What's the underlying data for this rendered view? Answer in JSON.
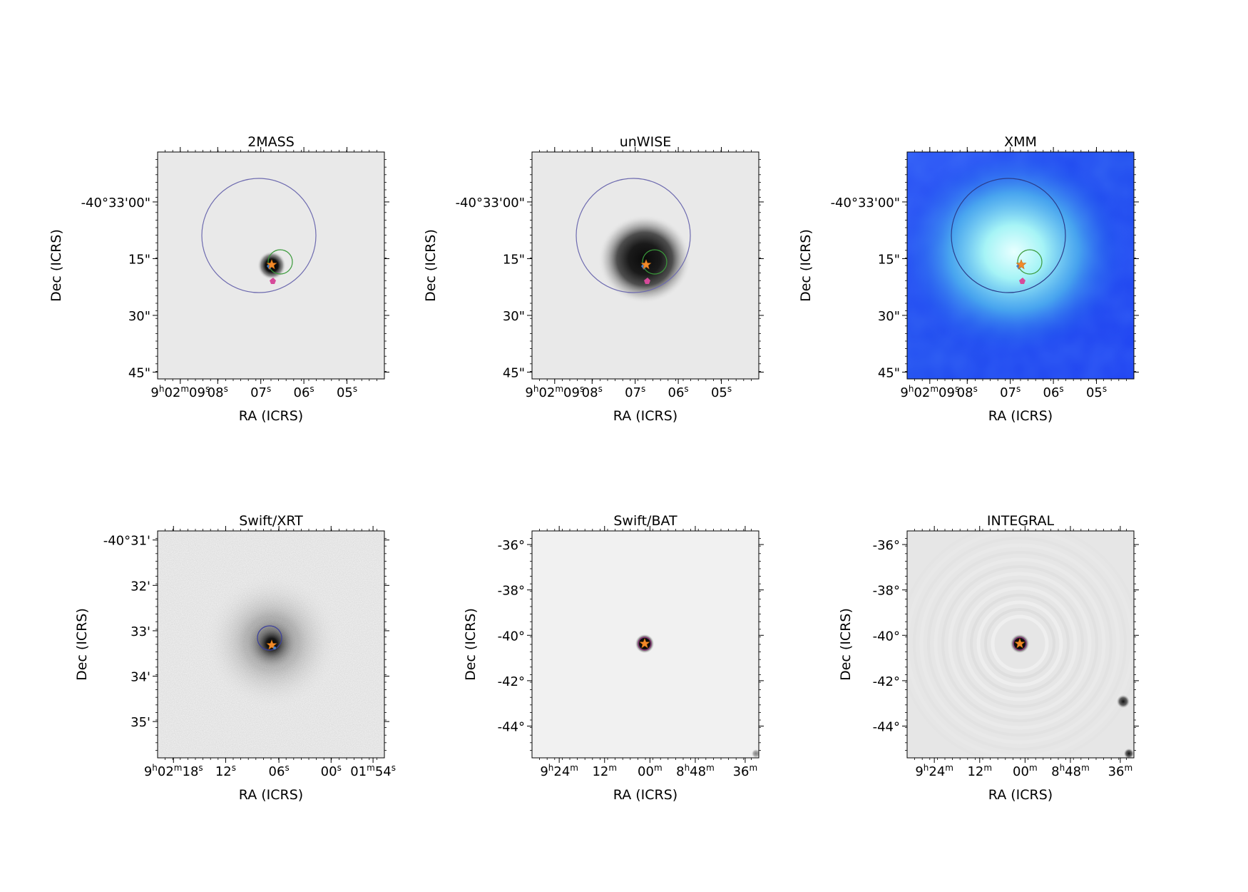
{
  "panels": [
    {
      "title": "2MASS",
      "xlabel": "RA (ICRS)",
      "ylabel": "Dec (ICRS)",
      "style": "2mass",
      "yticks": [
        {
          "label": "-40°33'00\"",
          "frac": 0.22
        },
        {
          "label": "15\"",
          "frac": 0.47
        },
        {
          "label": "30\"",
          "frac": 0.72
        },
        {
          "label": "45\"",
          "frac": 0.97
        }
      ],
      "xticks": [
        {
          "label": "9h02m09s",
          "frac": 0.1
        },
        {
          "label": "08s",
          "frac": 0.265
        },
        {
          "label": "07s",
          "frac": 0.455
        },
        {
          "label": "06s",
          "frac": 0.645
        },
        {
          "label": "05s",
          "frac": 0.835
        }
      ]
    },
    {
      "title": "unWISE",
      "xlabel": "RA (ICRS)",
      "ylabel": "Dec (ICRS)",
      "style": "unwise",
      "yticks": [
        {
          "label": "-40°33'00\"",
          "frac": 0.22
        },
        {
          "label": "15\"",
          "frac": 0.47
        },
        {
          "label": "30\"",
          "frac": 0.72
        },
        {
          "label": "45\"",
          "frac": 0.97
        }
      ],
      "xticks": [
        {
          "label": "9h02m09s",
          "frac": 0.1
        },
        {
          "label": "08s",
          "frac": 0.265
        },
        {
          "label": "07s",
          "frac": 0.455
        },
        {
          "label": "06s",
          "frac": 0.645
        },
        {
          "label": "05s",
          "frac": 0.835
        }
      ]
    },
    {
      "title": "XMM",
      "xlabel": "RA (ICRS)",
      "ylabel": "Dec (ICRS)",
      "style": "xmm",
      "yticks": [
        {
          "label": "-40°33'00\"",
          "frac": 0.22
        },
        {
          "label": "15\"",
          "frac": 0.47
        },
        {
          "label": "30\"",
          "frac": 0.72
        },
        {
          "label": "45\"",
          "frac": 0.97
        }
      ],
      "xticks": [
        {
          "label": "9h02m09s",
          "frac": 0.1
        },
        {
          "label": "08s",
          "frac": 0.265
        },
        {
          "label": "07s",
          "frac": 0.455
        },
        {
          "label": "06s",
          "frac": 0.645
        },
        {
          "label": "05s",
          "frac": 0.835
        }
      ]
    },
    {
      "title": "Swift/XRT",
      "xlabel": "RA (ICRS)",
      "ylabel": "Dec (ICRS)",
      "style": "xrt",
      "yticks": [
        {
          "label": "-40°31'",
          "frac": 0.04
        },
        {
          "label": "32'",
          "frac": 0.24
        },
        {
          "label": "33'",
          "frac": 0.44
        },
        {
          "label": "34'",
          "frac": 0.64
        },
        {
          "label": "35'",
          "frac": 0.84
        }
      ],
      "xticks": [
        {
          "label": "9h02m18s",
          "frac": 0.07
        },
        {
          "label": "12s",
          "frac": 0.3
        },
        {
          "label": "06s",
          "frac": 0.535
        },
        {
          "label": "00s",
          "frac": 0.765
        },
        {
          "label": "01m54s",
          "frac": 0.95
        }
      ]
    },
    {
      "title": "Swift/BAT",
      "xlabel": "RA (ICRS)",
      "ylabel": "Dec (ICRS)",
      "style": "bat",
      "yticks": [
        {
          "label": "-36°",
          "frac": 0.06
        },
        {
          "label": "-38°",
          "frac": 0.26
        },
        {
          "label": "-40°",
          "frac": 0.46
        },
        {
          "label": "-42°",
          "frac": 0.66
        },
        {
          "label": "-44°",
          "frac": 0.86
        }
      ],
      "xticks": [
        {
          "label": "9h24m",
          "frac": 0.12
        },
        {
          "label": "12m",
          "frac": 0.32
        },
        {
          "label": "00m",
          "frac": 0.52
        },
        {
          "label": "8h48m",
          "frac": 0.72
        },
        {
          "label": "36m",
          "frac": 0.94
        }
      ]
    },
    {
      "title": "INTEGRAL",
      "xlabel": "RA (ICRS)",
      "ylabel": "Dec (ICRS)",
      "style": "integral",
      "yticks": [
        {
          "label": "-36°",
          "frac": 0.06
        },
        {
          "label": "-38°",
          "frac": 0.26
        },
        {
          "label": "-40°",
          "frac": 0.46
        },
        {
          "label": "-42°",
          "frac": 0.66
        },
        {
          "label": "-44°",
          "frac": 0.86
        }
      ],
      "xticks": [
        {
          "label": "9h24m",
          "frac": 0.12
        },
        {
          "label": "12m",
          "frac": 0.32
        },
        {
          "label": "00m",
          "frac": 0.52
        },
        {
          "label": "8h48m",
          "frac": 0.72
        },
        {
          "label": "36m",
          "frac": 0.94
        }
      ]
    }
  ]
}
